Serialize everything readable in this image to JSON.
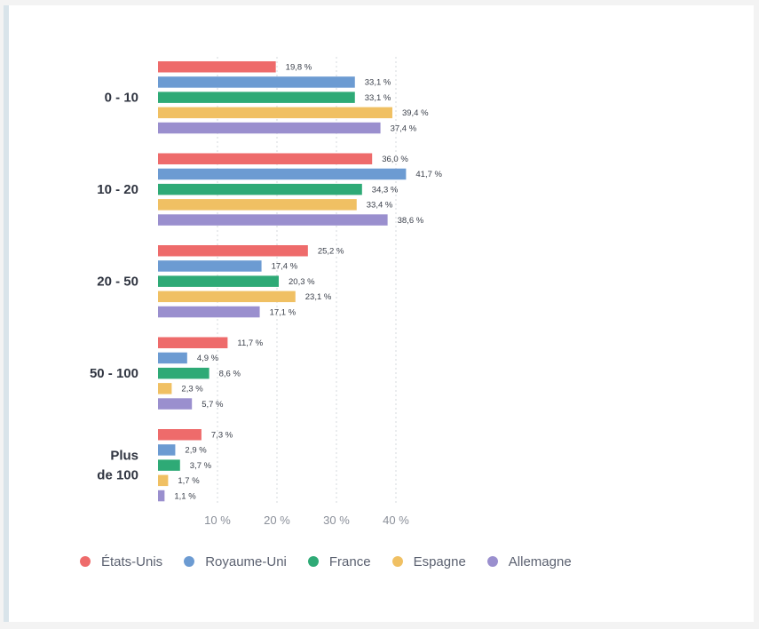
{
  "chart_data": {
    "type": "bar",
    "orientation": "horizontal",
    "categories": [
      [
        "0 - 10"
      ],
      [
        "10 - 20"
      ],
      [
        "20 - 50"
      ],
      [
        "50 - 100"
      ],
      [
        "Plus",
        "de 100"
      ]
    ],
    "series": [
      {
        "name": "États-Unis",
        "color": "#ee6b6b",
        "values": [
          19.8,
          36.0,
          25.2,
          11.7,
          7.3
        ],
        "labels": [
          "19,8 %",
          "36,0 %",
          "25,2 %",
          "11,7 %",
          "7,3 %"
        ]
      },
      {
        "name": "Royaume-Uni",
        "color": "#6c9bd2",
        "values": [
          33.1,
          41.7,
          17.4,
          4.9,
          2.9
        ],
        "labels": [
          "33,1 %",
          "41,7 %",
          "17,4 %",
          "4,9 %",
          "2,9 %"
        ]
      },
      {
        "name": "France",
        "color": "#2eaa76",
        "values": [
          33.1,
          34.3,
          20.3,
          8.6,
          3.7
        ],
        "labels": [
          "33,1 %",
          "34,3 %",
          "20,3 %",
          "8,6 %",
          "3,7 %"
        ]
      },
      {
        "name": "Espagne",
        "color": "#f0c063",
        "values": [
          39.4,
          33.4,
          23.1,
          2.3,
          1.7
        ],
        "labels": [
          "39,4 %",
          "33,4 %",
          "23,1 %",
          "2,3 %",
          "1,7 %"
        ]
      },
      {
        "name": "Allemagne",
        "color": "#9a8fce",
        "values": [
          37.4,
          38.6,
          17.1,
          5.7,
          1.1
        ],
        "labels": [
          "37,4 %",
          "38,6 %",
          "17,1 %",
          "5,7 %",
          "1,1 %"
        ]
      }
    ],
    "xticks": [
      10,
      20,
      30,
      40
    ],
    "xtick_labels": [
      "10 %",
      "20 %",
      "30 %",
      "40 %"
    ],
    "xlim": [
      0,
      50
    ],
    "grid": true,
    "legend_position": "bottom"
  }
}
